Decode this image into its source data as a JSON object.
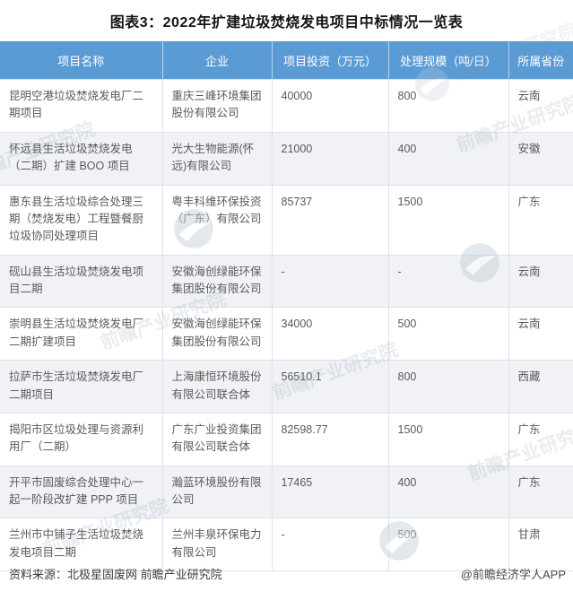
{
  "chart_data": {
    "type": "table",
    "title": "图表3：2022年扩建垃圾焚烧发电项目中标情况一览表",
    "columns": [
      "项目名称",
      "企业",
      "项目投资（万元）",
      "处理规模（吨/日）",
      "所属省份"
    ],
    "rows": [
      [
        "昆明空港垃圾焚烧发电厂二期项目",
        "重庆三峰环境集团股份有限公司",
        "40000",
        "800",
        "云南"
      ],
      [
        "怀远县生活垃圾焚烧发电（二期）扩建 BOO 项目",
        "光大生物能源(怀远)有限公司",
        "21000",
        "400",
        "安徽"
      ],
      [
        "惠东县生活垃圾综合处理三期（焚烧发电）工程暨餐厨垃圾协同处理项目",
        "粤丰科维环保投资（广东）有限公司",
        "85737",
        "1500",
        "广东"
      ],
      [
        "砚山县生活垃圾焚烧发电项目二期",
        "安徽海创绿能环保集团股份有限公司",
        "-",
        "-",
        "云南"
      ],
      [
        "崇明县生活垃圾焚烧发电厂二期扩建项目",
        "安徽海创绿能环保集团股份有限公司",
        "34000",
        "500",
        "云南"
      ],
      [
        "拉萨市生活垃圾焚烧发电厂二期项目",
        "上海康恒环境股份有限公司联合体",
        "56510.1",
        "800",
        "西藏"
      ],
      [
        "揭阳市区垃圾处理与资源利用厂（二期）",
        "广东广业投资集团有限公司联合体",
        "82598.77",
        "1500",
        "广东"
      ],
      [
        "开平市固废综合处理中心一起一阶段改扩建 PPP 项目",
        "瀚蓝环境股份有限公司",
        "17465",
        "400",
        "广东"
      ],
      [
        "兰州市中铺子生活垃圾焚烧发电项目二期",
        "兰州丰泉环保电力有限公司",
        "-",
        "500",
        "甘肃"
      ]
    ]
  },
  "footer": {
    "source": "资料来源：北极星固废网 前瞻产业研究院",
    "credit": "@前瞻经济学人APP"
  },
  "watermark": {
    "text": "前瞻产业研究院"
  },
  "colors": {
    "header_bg": "#5B9BD5",
    "alt_row_bg": "#F0F2F5",
    "border": "#DEE2E7",
    "body_text": "#5A5A5A"
  }
}
